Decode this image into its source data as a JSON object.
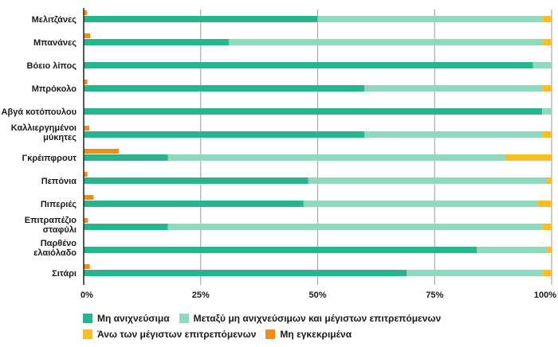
{
  "chart_data": {
    "type": "bar",
    "orientation": "horizontal",
    "stacked": true,
    "categories": [
      [
        "Μελιτζάνες"
      ],
      [
        "Μπανάνες"
      ],
      [
        "Βόειο λίπος"
      ],
      [
        "Μπρόκολο"
      ],
      [
        "Αβγά κοτόπουλου"
      ],
      [
        "Καλλιεργημένοι",
        "μύκητες"
      ],
      [
        "Γκρέιπφρουτ"
      ],
      [
        "Πεπόνια"
      ],
      [
        "Πιπεριές"
      ],
      [
        "Επιτραπέζιο",
        "σταφύλι"
      ],
      [
        "Παρθένο",
        "ελαιόλαδο"
      ],
      [
        "Σιτάρι"
      ]
    ],
    "series": [
      {
        "name": "Μη ανιχνεύσιμα",
        "color": "#26b58d",
        "values": [
          50,
          31,
          96,
          60,
          98,
          60,
          18,
          48,
          47,
          18,
          84,
          69
        ]
      },
      {
        "name": "Μεταξύ μη ανιχνεύσιμων και μέγιστων επιτρεπόμενων",
        "color": "#8fd9be",
        "values": [
          48,
          67,
          4,
          38,
          2,
          38,
          72,
          51,
          50,
          80,
          15,
          29
        ]
      },
      {
        "name": "Άνω των μέγιστων επιτρεπόμενων",
        "color": "#f7bd25",
        "values": [
          2,
          2,
          0,
          2,
          0,
          2,
          10,
          1,
          3,
          2,
          1,
          2
        ]
      }
    ],
    "unapproved": {
      "name": "Μη εγκεκριμένα",
      "color": "#f08c1e",
      "values": [
        0.7,
        1.4,
        0,
        0.8,
        0,
        1.2,
        7.5,
        0.8,
        2.1,
        0.9,
        0,
        1.3
      ]
    },
    "xlim": [
      0,
      100
    ],
    "xticks": [
      "0%",
      "25%",
      "50%",
      "75%",
      "100%"
    ],
    "grid": true,
    "legend_position": "bottom"
  },
  "legend": {
    "rows": [
      [
        0,
        1
      ],
      [
        2,
        3
      ]
    ]
  }
}
